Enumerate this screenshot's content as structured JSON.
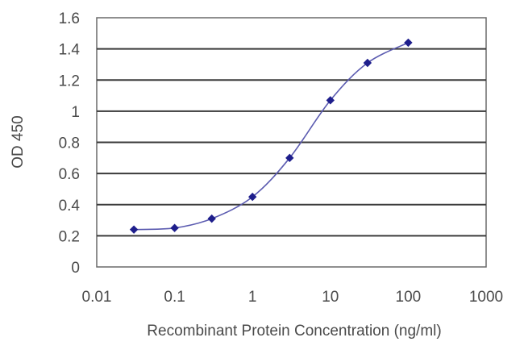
{
  "chart_data": {
    "type": "line",
    "title": "",
    "xlabel": "Recombinant Protein Concentration (ng/ml)",
    "ylabel": "OD 450",
    "xscale": "log",
    "xlim": [
      0.01,
      1000
    ],
    "ylim": [
      0,
      1.6
    ],
    "grid": "horizontal",
    "legend": "none",
    "x_ticks": [
      "0.01",
      "0.1",
      "1",
      "10",
      "100",
      "1000"
    ],
    "y_ticks": [
      "0",
      "0.2",
      "0.4",
      "0.6",
      "0.8",
      "1",
      "1.2",
      "1.4",
      "1.6"
    ],
    "series": [
      {
        "x": [
          0.03,
          0.1,
          0.3,
          1,
          3,
          10,
          30,
          100
        ],
        "y": [
          0.24,
          0.25,
          0.31,
          0.45,
          0.7,
          1.07,
          1.31,
          1.44
        ]
      }
    ],
    "colors": {
      "line": "#5b5bb0",
      "marker": "#1e1e8c",
      "grid": "#3a3a3a"
    }
  }
}
